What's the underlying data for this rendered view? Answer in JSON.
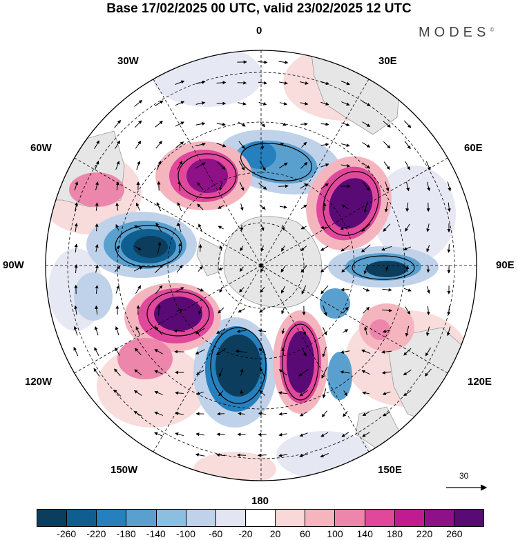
{
  "title": "Base 17/02/2025 00 UTC, valid 23/02/2025 12 UTC",
  "brand": "MODES",
  "brand_mark": "©",
  "longitude_labels": {
    "lon_0": "0",
    "lon_30e": "30E",
    "lon_60e": "60E",
    "lon_90e": "90E",
    "lon_120e": "120E",
    "lon_150e": "150E",
    "lon_180": "180",
    "lon_150w": "150W",
    "lon_120w": "120W",
    "lon_90w": "90W",
    "lon_60w": "60W",
    "lon_30w": "30W"
  },
  "reference_vector": {
    "label": "30"
  },
  "colorbar": {
    "colors": [
      "#0d3d5c",
      "#0f5e8f",
      "#2680bd",
      "#5aa0cf",
      "#8bbfe0",
      "#bfd2ea",
      "#e3e5f2",
      "#ffffff",
      "#f8d8d8",
      "#f4b5bf",
      "#ec86aa",
      "#e0489b",
      "#c01b8f",
      "#8e1187",
      "#5a0a75"
    ],
    "tick_labels": [
      "-260",
      "-220",
      "-180",
      "-140",
      "-100",
      "-60",
      "-20",
      "20",
      "60",
      "100",
      "140",
      "180",
      "220",
      "260"
    ]
  },
  "anomaly_cells": [
    {
      "name": "negative",
      "color": "#8bbfe0"
    },
    {
      "name": "positive",
      "color": "#ec86aa"
    }
  ]
}
